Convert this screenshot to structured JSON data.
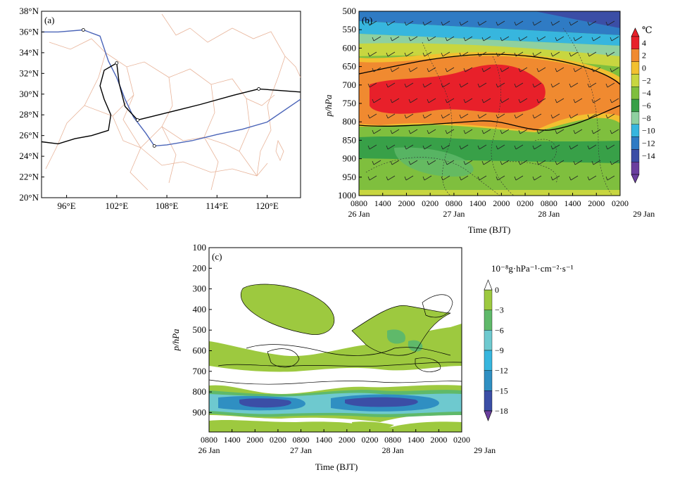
{
  "chart_data": [
    {
      "panel_label": "(a)",
      "type": "map",
      "lat_ticks": [
        "20°N",
        "22°N",
        "24°N",
        "26°N",
        "28°N",
        "30°N",
        "32°N",
        "34°N",
        "36°N",
        "38°N"
      ],
      "lon_ticks": [
        "96°E",
        "102°E",
        "108°E",
        "114°E",
        "120°E"
      ],
      "lon_range": [
        93,
        124
      ],
      "lat_range": [
        20,
        38
      ],
      "series": [
        {
          "color": "#4a64b8",
          "points": [
            [
              93,
              36
            ],
            [
              95,
              36
            ],
            [
              98,
              36.2
            ],
            [
              100,
              35.6
            ],
            [
              101,
              33.2
            ],
            [
              102,
              31.6
            ],
            [
              103,
              29.5
            ],
            [
              104,
              27.8
            ],
            [
              105.5,
              26.2
            ],
            [
              106.5,
              25
            ],
            [
              108,
              25.1
            ],
            [
              111,
              25.5
            ],
            [
              114,
              26.1
            ],
            [
              117,
              26.6
            ],
            [
              120,
              27.3
            ],
            [
              124,
              29.5
            ]
          ]
        },
        {
          "color": "#000000",
          "points": [
            [
              102,
              33
            ],
            [
              100.5,
              32.3
            ],
            [
              100,
              30.8
            ],
            [
              100.5,
              29.5
            ],
            [
              101.3,
              28
            ],
            [
              101,
              26.5
            ],
            [
              99,
              26
            ],
            [
              97,
              25.7
            ],
            [
              95,
              25.2
            ],
            [
              93,
              25.4
            ]
          ]
        },
        {
          "color": "#000000",
          "points": [
            [
              102,
              33
            ],
            [
              102.3,
              31
            ],
            [
              103,
              28.8
            ],
            [
              104.5,
              27.5
            ],
            [
              108,
              28.2
            ],
            [
              112,
              29
            ],
            [
              116,
              29.9
            ],
            [
              119,
              30.5
            ],
            [
              124,
              30.2
            ]
          ]
        }
      ],
      "markers": [
        [
          98,
          36.2
        ],
        [
          106.5,
          25
        ],
        [
          102,
          33
        ],
        [
          104.5,
          27.5
        ],
        [
          119,
          30.5
        ]
      ]
    },
    {
      "panel_label": "(b)",
      "type": "heatmap",
      "ylabel": "p/hPa",
      "xlabel": "Time (BJT)",
      "y_ticks": [
        "500",
        "550",
        "600",
        "650",
        "700",
        "750",
        "800",
        "850",
        "900",
        "950",
        "1000"
      ],
      "x_ticks": [
        "0800",
        "1400",
        "2000",
        "0200",
        "0800",
        "1400",
        "2000",
        "0200",
        "0800",
        "1400",
        "2000",
        "0200"
      ],
      "x_dates": [
        "26 Jan",
        "27 Jan",
        "28 Jan",
        "29 Jan"
      ],
      "colorbar_unit": "℃",
      "colorbar_ticks": [
        "4",
        "2",
        "0",
        "−2",
        "−4",
        "−6",
        "−8",
        "−10",
        "−12",
        "−14"
      ],
      "colors": [
        "#7b3f9e",
        "#3b4ea6",
        "#2f7bc4",
        "#37b6de",
        "#8fd0a0",
        "#38a048",
        "#7fbf3e",
        "#c8d640",
        "#f2c030",
        "#f08a30",
        "#e8202a"
      ],
      "bands": [
        {
          "p": 500,
          "v": -11
        },
        {
          "p": 550,
          "v": -8
        },
        {
          "p": 600,
          "v": -4
        },
        {
          "p": 625,
          "v": -1
        },
        {
          "p": 650,
          "v": 1
        },
        {
          "p": 700,
          "v": 3
        },
        {
          "p": 750,
          "v": 3
        },
        {
          "p": 800,
          "v": 0
        },
        {
          "p": 830,
          "v": -3
        },
        {
          "p": 870,
          "v": -5
        },
        {
          "p": 920,
          "v": -6
        },
        {
          "p": 960,
          "v": -5
        },
        {
          "p": 1000,
          "v": -3
        }
      ]
    },
    {
      "panel_label": "(c)",
      "type": "heatmap",
      "ylabel": "p/hPa",
      "xlabel": "Time (BJT)",
      "y_ticks": [
        "100",
        "200",
        "300",
        "400",
        "500",
        "600",
        "700",
        "800",
        "900"
      ],
      "x_ticks": [
        "0800",
        "1400",
        "2000",
        "0200",
        "0800",
        "1400",
        "2000",
        "0200",
        "0800",
        "1400",
        "2000",
        "0200"
      ],
      "x_dates": [
        "26 Jan",
        "27 Jan",
        "28 Jan",
        "29 Jan"
      ],
      "colorbar_unit": "10⁻⁸g·hPa⁻¹·cm⁻²·s⁻¹",
      "colorbar_ticks": [
        "0",
        "−3",
        "−6",
        "−9",
        "−12",
        "−15",
        "−18"
      ],
      "colors": [
        "#ffffff",
        "#9dc93f",
        "#5fb96a",
        "#6ec9cf",
        "#2f8fc2",
        "#3b4ea6",
        "#6a3f9e",
        "#8a4fae"
      ]
    }
  ]
}
